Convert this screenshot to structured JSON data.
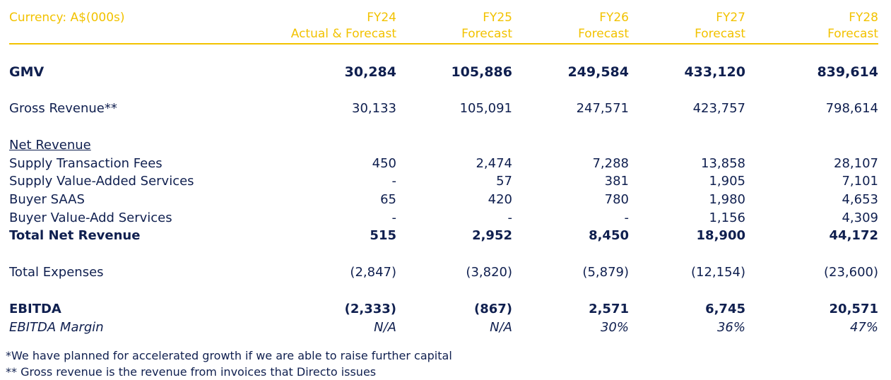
{
  "currency_label": "Currency: A$(000s)",
  "columns": [
    {
      "year": "FY24",
      "sub": "Actual & Forecast"
    },
    {
      "year": "FY25",
      "sub": "Forecast"
    },
    {
      "year": "FY26",
      "sub": "Forecast"
    },
    {
      "year": "FY27",
      "sub": "Forecast"
    },
    {
      "year": "FY28",
      "sub": "Forecast"
    }
  ],
  "rows": {
    "gmv": {
      "label": "GMV",
      "values": [
        "30,284",
        "105,886",
        "249,584",
        "433,120",
        "839,614"
      ]
    },
    "gross_revenue": {
      "label": "Gross Revenue**",
      "values": [
        "30,133",
        "105,091",
        "247,571",
        "423,757",
        "798,614"
      ]
    },
    "net_revenue_heading": {
      "label": "Net Revenue"
    },
    "supply_transaction_fees": {
      "label": "Supply Transaction Fees",
      "values": [
        "450",
        "2,474",
        "7,288",
        "13,858",
        "28,107"
      ]
    },
    "supply_vas": {
      "label": "Supply Value-Added Services",
      "values": [
        "-",
        "57",
        "381",
        "1,905",
        "7,101"
      ]
    },
    "buyer_saas": {
      "label": "Buyer SAAS",
      "values": [
        "65",
        "420",
        "780",
        "1,980",
        "4,653"
      ]
    },
    "buyer_vas": {
      "label": "Buyer Value-Add Services",
      "values": [
        "-",
        "-",
        "-",
        "1,156",
        "4,309"
      ]
    },
    "total_net_revenue": {
      "label": "Total Net Revenue",
      "values": [
        "515",
        "2,952",
        "8,450",
        "18,900",
        "44,172"
      ]
    },
    "total_expenses": {
      "label": "Total Expenses",
      "values": [
        "(2,847)",
        "(3,820)",
        "(5,879)",
        "(12,154)",
        "(23,600)"
      ]
    },
    "ebitda": {
      "label": "EBITDA",
      "values": [
        "(2,333)",
        "(867)",
        "2,571",
        "6,745",
        "20,571"
      ]
    },
    "ebitda_margin": {
      "label": "EBITDA Margin",
      "values": [
        "N/A",
        "N/A",
        "30%",
        "36%",
        "47%"
      ]
    }
  },
  "footnotes": [
    "*We have planned for accelerated growth if we are able to raise further capital",
    "** Gross revenue is the revenue from invoices that Directo issues"
  ],
  "colors": {
    "accent": "#f2c200",
    "text": "#0f1f4f"
  }
}
